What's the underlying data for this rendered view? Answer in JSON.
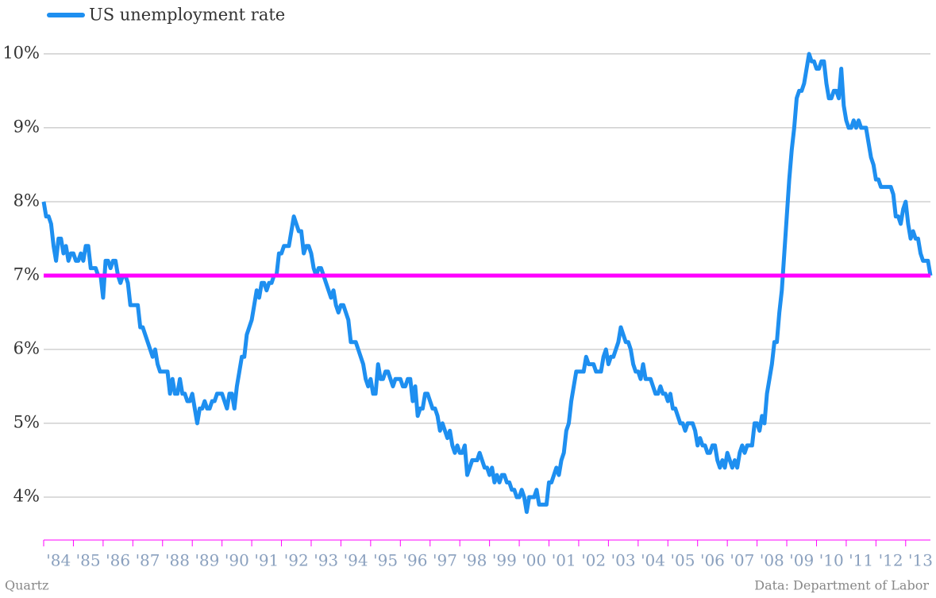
{
  "chart_data": {
    "type": "line",
    "series": [
      {
        "name": "US unemployment rate",
        "color": "#1e8ff0",
        "values": [
          8.0,
          7.8,
          7.8,
          7.7,
          7.4,
          7.2,
          7.5,
          7.5,
          7.3,
          7.4,
          7.2,
          7.3,
          7.3,
          7.2,
          7.2,
          7.3,
          7.2,
          7.4,
          7.4,
          7.1,
          7.1,
          7.1,
          7.0,
          7.0,
          6.7,
          7.2,
          7.2,
          7.1,
          7.2,
          7.2,
          7.0,
          6.9,
          7.0,
          7.0,
          6.9,
          6.6,
          6.6,
          6.6,
          6.6,
          6.3,
          6.3,
          6.2,
          6.1,
          6.0,
          5.9,
          6.0,
          5.8,
          5.7,
          5.7,
          5.7,
          5.7,
          5.4,
          5.6,
          5.4,
          5.4,
          5.6,
          5.4,
          5.4,
          5.3,
          5.3,
          5.4,
          5.2,
          5.0,
          5.2,
          5.2,
          5.3,
          5.2,
          5.2,
          5.3,
          5.3,
          5.4,
          5.4,
          5.4,
          5.3,
          5.2,
          5.4,
          5.4,
          5.2,
          5.5,
          5.7,
          5.9,
          5.9,
          6.2,
          6.3,
          6.4,
          6.6,
          6.8,
          6.7,
          6.9,
          6.9,
          6.8,
          6.9,
          6.9,
          7.0,
          7.0,
          7.3,
          7.3,
          7.4,
          7.4,
          7.4,
          7.6,
          7.8,
          7.7,
          7.6,
          7.6,
          7.3,
          7.4,
          7.4,
          7.3,
          7.1,
          7.0,
          7.1,
          7.1,
          7.0,
          6.9,
          6.8,
          6.7,
          6.8,
          6.6,
          6.5,
          6.6,
          6.6,
          6.5,
          6.4,
          6.1,
          6.1,
          6.1,
          6.0,
          5.9,
          5.8,
          5.6,
          5.5,
          5.6,
          5.4,
          5.4,
          5.8,
          5.6,
          5.6,
          5.7,
          5.7,
          5.6,
          5.5,
          5.6,
          5.6,
          5.6,
          5.5,
          5.5,
          5.6,
          5.6,
          5.3,
          5.5,
          5.1,
          5.2,
          5.2,
          5.4,
          5.4,
          5.3,
          5.2,
          5.2,
          5.1,
          4.9,
          5.0,
          4.9,
          4.8,
          4.9,
          4.7,
          4.6,
          4.7,
          4.6,
          4.6,
          4.7,
          4.3,
          4.4,
          4.5,
          4.5,
          4.5,
          4.6,
          4.5,
          4.4,
          4.4,
          4.3,
          4.4,
          4.2,
          4.3,
          4.2,
          4.3,
          4.3,
          4.2,
          4.2,
          4.1,
          4.1,
          4.0,
          4.0,
          4.1,
          4.0,
          3.8,
          4.0,
          4.0,
          4.0,
          4.1,
          3.9,
          3.9,
          3.9,
          3.9,
          4.2,
          4.2,
          4.3,
          4.4,
          4.3,
          4.5,
          4.6,
          4.9,
          5.0,
          5.3,
          5.5,
          5.7,
          5.7,
          5.7,
          5.7,
          5.9,
          5.8,
          5.8,
          5.8,
          5.7,
          5.7,
          5.7,
          5.9,
          6.0,
          5.8,
          5.9,
          5.9,
          6.0,
          6.1,
          6.3,
          6.2,
          6.1,
          6.1,
          6.0,
          5.8,
          5.7,
          5.7,
          5.6,
          5.8,
          5.6,
          5.6,
          5.6,
          5.5,
          5.4,
          5.4,
          5.5,
          5.4,
          5.4,
          5.3,
          5.4,
          5.2,
          5.2,
          5.1,
          5.0,
          5.0,
          4.9,
          5.0,
          5.0,
          5.0,
          4.9,
          4.7,
          4.8,
          4.7,
          4.7,
          4.6,
          4.6,
          4.7,
          4.7,
          4.5,
          4.4,
          4.5,
          4.4,
          4.6,
          4.5,
          4.4,
          4.5,
          4.4,
          4.6,
          4.7,
          4.6,
          4.7,
          4.7,
          4.7,
          5.0,
          5.0,
          4.9,
          5.1,
          5.0,
          5.4,
          5.6,
          5.8,
          6.1,
          6.1,
          6.5,
          6.8,
          7.3,
          7.8,
          8.3,
          8.7,
          9.0,
          9.4,
          9.5,
          9.5,
          9.6,
          9.8,
          10.0,
          9.9,
          9.9,
          9.8,
          9.8,
          9.9,
          9.9,
          9.6,
          9.4,
          9.4,
          9.5,
          9.5,
          9.4,
          9.8,
          9.3,
          9.1,
          9.0,
          9.0,
          9.1,
          9.0,
          9.1,
          9.0,
          9.0,
          9.0,
          8.8,
          8.6,
          8.5,
          8.3,
          8.3,
          8.2,
          8.2,
          8.2,
          8.2,
          8.2,
          8.1,
          7.8,
          7.8,
          7.7,
          7.9,
          8.0,
          7.7,
          7.5,
          7.6,
          7.5,
          7.5,
          7.3,
          7.2,
          7.2,
          7.2,
          7.0
        ]
      }
    ],
    "categories": [
      null,
      null,
      null,
      null,
      null,
      null,
      "'84",
      null,
      null,
      null,
      null,
      null,
      null,
      null,
      null,
      null,
      null,
      null,
      "'85",
      null,
      null,
      null,
      null,
      null,
      null,
      null,
      null,
      null,
      null,
      null,
      "'86",
      null,
      null,
      null,
      null,
      null,
      null,
      null,
      null,
      null,
      null,
      null,
      "'87",
      null,
      null,
      null,
      null,
      null,
      null,
      null,
      null,
      null,
      null,
      null,
      "'88",
      null,
      null,
      null,
      null,
      null,
      null,
      null,
      null,
      null,
      null,
      null,
      "'89",
      null,
      null,
      null,
      null,
      null,
      null,
      null,
      null,
      null,
      null,
      null,
      "'90",
      null,
      null,
      null,
      null,
      null,
      null,
      null,
      null,
      null,
      null,
      null,
      "'91",
      null,
      null,
      null,
      null,
      null,
      null,
      null,
      null,
      null,
      null,
      null,
      "'92",
      null,
      null,
      null,
      null,
      null,
      null,
      null,
      null,
      null,
      null,
      null,
      "'93",
      null,
      null,
      null,
      null,
      null,
      null,
      null,
      null,
      null,
      null,
      null,
      "'94",
      null,
      null,
      null,
      null,
      null,
      null,
      null,
      null,
      null,
      null,
      null,
      "'95",
      null,
      null,
      null,
      null,
      null,
      null,
      null,
      null,
      null,
      null,
      null,
      "'96",
      null,
      null,
      null,
      null,
      null,
      null,
      null,
      null,
      null,
      null,
      null,
      "'97",
      null,
      null,
      null,
      null,
      null,
      null,
      null,
      null,
      null,
      null,
      null,
      "'98",
      null,
      null,
      null,
      null,
      null,
      null,
      null,
      null,
      null,
      null,
      null,
      "'99",
      null,
      null,
      null,
      null,
      null,
      null,
      null,
      null,
      null,
      null,
      null,
      "'00",
      null,
      null,
      null,
      null,
      null,
      null,
      null,
      null,
      null,
      null,
      null,
      "'01",
      null,
      null,
      null,
      null,
      null,
      null,
      null,
      null,
      null,
      null,
      null,
      "'02",
      null,
      null,
      null,
      null,
      null,
      null,
      null,
      null,
      null,
      null,
      null,
      "'03",
      null,
      null,
      null,
      null,
      null,
      null,
      null,
      null,
      null,
      null,
      null,
      "'04",
      null,
      null,
      null,
      null,
      null,
      null,
      null,
      null,
      null,
      null,
      null,
      "'05",
      null,
      null,
      null,
      null,
      null,
      null,
      null,
      null,
      null,
      null,
      null,
      "'06",
      null,
      null,
      null,
      null,
      null,
      null,
      null,
      null,
      null,
      null,
      null,
      "'07",
      null,
      null,
      null,
      null,
      null,
      null,
      null,
      null,
      null,
      null,
      null,
      "'08",
      null,
      null,
      null,
      null,
      null,
      null,
      null,
      null,
      null,
      null,
      null,
      "'09",
      null,
      null,
      null,
      null,
      null,
      null,
      null,
      null,
      null,
      null,
      null,
      "'10",
      null,
      null,
      null,
      null,
      null,
      null,
      null,
      null,
      null,
      null,
      null,
      "'11",
      null,
      null,
      null,
      null,
      null,
      null,
      null,
      null,
      null,
      null,
      null,
      "'12",
      null,
      null,
      null,
      null,
      null,
      null,
      null,
      null,
      null,
      null,
      null,
      "'13",
      null,
      null,
      null,
      null
    ],
    "ylim": [
      3.42,
      10.3
    ],
    "yticks": [
      {
        "value": 4,
        "label": "4%"
      },
      {
        "value": 5,
        "label": "5%"
      },
      {
        "value": 6,
        "label": "6%"
      },
      {
        "value": 7,
        "label": "7%"
      },
      {
        "value": 8,
        "label": "8%"
      },
      {
        "value": 9,
        "label": "9%"
      },
      {
        "value": 10,
        "label": "10%"
      }
    ],
    "grid": true,
    "reference_line": {
      "value": 7,
      "color": "#ff00ff"
    },
    "credit": "Quartz",
    "source": "Data: Department of Labor"
  }
}
